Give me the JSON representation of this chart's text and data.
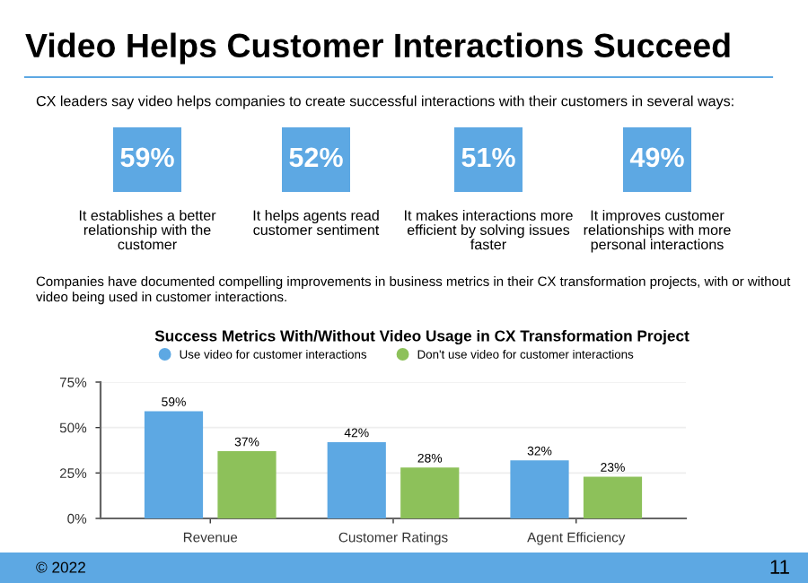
{
  "chart_data": [
    {
      "type": "other",
      "title": "Video Helps Customer Interactions Succeed",
      "subtitle": "CX leaders say video helps companies to create successful interactions with their customers in several ways:",
      "color": "#5da8e3",
      "annotations": [
        "59%",
        "52%",
        "51%",
        "49%",
        "It establishes a better\nrelationship with the\ncustomer",
        "It helps agents read\ncustomer sentiment",
        "It makes interactions more\nefficient by solving issues\nfaster",
        "It improves customer\nrelationships with more\npersonal interactions",
        "Companies have documented compelling improvements in business metrics in their CX transformation projects, with or without\nvideo being used in customer interactions.",
        "© 2022",
        "11"
      ]
    },
    {
      "type": "bar",
      "title": "Success Metrics With/Without Video Usage in CX Transformation Project",
      "categories": [
        "Revenue",
        "Customer Ratings",
        "Agent Efficiency"
      ],
      "series": [
        {
          "name": "Use video for customer interactions",
          "color": "#5da8e3",
          "values": [
            59,
            42,
            32
          ],
          "value_labels": [
            "59%",
            "42%",
            "32%"
          ]
        },
        {
          "name": "Don't use video for customer interactions",
          "color": "#8dc15a",
          "values": [
            37,
            28,
            23
          ],
          "value_labels": [
            "37%",
            "28%",
            "23%"
          ]
        }
      ],
      "ylim": [
        0,
        75
      ],
      "yticks": [
        {
          "value": 0,
          "label": "0%"
        },
        {
          "value": 25,
          "label": "25%"
        },
        {
          "value": 50,
          "label": "50%"
        },
        {
          "value": 75,
          "label": "75%"
        }
      ],
      "grid": "y",
      "legend": "top"
    }
  ]
}
